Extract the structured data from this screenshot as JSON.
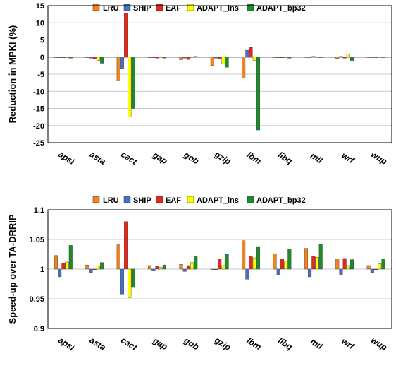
{
  "chart_data": [
    {
      "type": "bar",
      "ylabel": "Reduction in MPKI (%)",
      "ylim": [
        -25,
        15
      ],
      "yticks": [
        -25,
        -20,
        -15,
        -10,
        -5,
        0,
        5,
        10,
        15
      ],
      "grid": true,
      "legend_position": "top",
      "categories": [
        "apsi",
        "asta",
        "cact",
        "gap",
        "gob",
        "gzip",
        "lbm",
        "libq",
        "mil",
        "wrf",
        "wup"
      ],
      "series": [
        {
          "name": "LRU",
          "color": "#f58220",
          "values": [
            -0.2,
            -0.2,
            -7.0,
            -0.2,
            -0.8,
            -2.5,
            -6.2,
            -0.2,
            -0.1,
            -0.4,
            0.0
          ]
        },
        {
          "name": "SHIP",
          "color": "#4472c4",
          "values": [
            -0.2,
            -0.3,
            -3.5,
            -0.2,
            -0.3,
            -0.3,
            2.0,
            -0.2,
            -0.1,
            0.2,
            0.0
          ]
        },
        {
          "name": "EAF",
          "color": "#e8261c",
          "values": [
            -0.2,
            -0.5,
            12.8,
            -0.3,
            -0.7,
            -0.4,
            2.8,
            -0.2,
            0.2,
            -0.3,
            0.0
          ]
        },
        {
          "name": "ADAPT_ins",
          "color": "#ffff00",
          "values": [
            -0.2,
            -1.0,
            -17.5,
            -0.2,
            -0.2,
            -2.0,
            -1.0,
            -0.2,
            0.0,
            0.8,
            0.0
          ]
        },
        {
          "name": "ADAPT_bp32",
          "color": "#1a8c2a",
          "values": [
            -0.3,
            -1.8,
            -15.0,
            -0.3,
            0.2,
            -3.0,
            -21.3,
            -0.3,
            0.0,
            -1.0,
            0.0
          ]
        }
      ]
    },
    {
      "type": "bar",
      "ylabel": "Speed-up over TA-DRRIP",
      "ylim": [
        0.9,
        1.1
      ],
      "yticks": [
        0.9,
        0.95,
        1,
        1.05,
        1.1
      ],
      "ytick_labels": [
        "0.9",
        "0.95",
        "1",
        "1.05",
        "1.1"
      ],
      "grid": true,
      "legend_position": "top",
      "categories": [
        "apsi",
        "asta",
        "cact",
        "gap",
        "gob",
        "gzip",
        "lbm",
        "libq",
        "mil",
        "wrf",
        "wup"
      ],
      "series": [
        {
          "name": "LRU",
          "color": "#f58220",
          "values": [
            1.023,
            1.007,
            1.041,
            1.006,
            1.008,
            0.999,
            1.048,
            1.026,
            1.035,
            1.017,
            1.006
          ]
        },
        {
          "name": "SHIP",
          "color": "#4472c4",
          "values": [
            0.987,
            0.994,
            0.958,
            0.997,
            0.996,
            1.0,
            0.983,
            0.99,
            0.987,
            0.991,
            0.994
          ]
        },
        {
          "name": "EAF",
          "color": "#e8261c",
          "values": [
            1.01,
            1.0,
            1.08,
            1.005,
            1.006,
            1.017,
            1.021,
            1.017,
            1.022,
            1.018,
            0.999
          ]
        },
        {
          "name": "ADAPT_ins",
          "color": "#ffff00",
          "values": [
            1.012,
            1.005,
            0.952,
            1.003,
            1.011,
            1.006,
            1.019,
            1.014,
            1.02,
            1.006,
            1.009
          ]
        },
        {
          "name": "ADAPT_bp32",
          "color": "#1a8c2a",
          "values": [
            1.04,
            1.011,
            0.969,
            1.007,
            1.021,
            1.025,
            1.038,
            1.034,
            1.042,
            1.016,
            1.017
          ]
        }
      ]
    }
  ]
}
